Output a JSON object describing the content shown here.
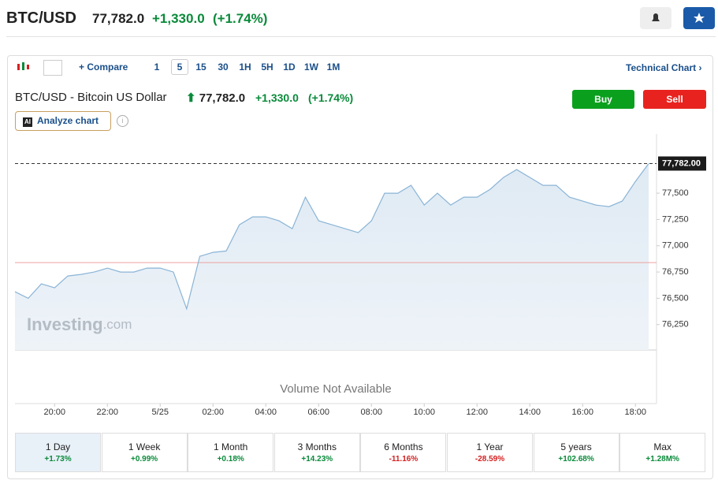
{
  "header": {
    "symbol": "BTC/USD",
    "price": "77,782.0",
    "change": "+1,330.0",
    "change_pct": "(+1.74%)"
  },
  "toolbar": {
    "compare": "Compare",
    "intervals": [
      "1",
      "5",
      "15",
      "30",
      "1H",
      "5H",
      "1D",
      "1W",
      "1M"
    ],
    "technical": "Technical Chart"
  },
  "instrument": {
    "name": "BTC/USD - Bitcoin US Dollar",
    "buy": "Buy",
    "sell": "Sell",
    "analyze": "Analyze chart"
  },
  "chart_data": {
    "type": "area",
    "color": "#8ab4d6",
    "categories": [
      "18:30",
      "19:00",
      "19:30",
      "20:00",
      "20:30",
      "21:00",
      "21:30",
      "22:00",
      "22:30",
      "23:00",
      "23:30",
      "5/25",
      "00:30",
      "01:00",
      "01:30",
      "02:00",
      "02:30",
      "03:00",
      "03:30",
      "04:00",
      "04:30",
      "05:00",
      "05:30",
      "06:00",
      "06:30",
      "07:00",
      "07:30",
      "08:00",
      "08:30",
      "09:00",
      "09:30",
      "10:00",
      "10:30",
      "11:00",
      "11:30",
      "12:00",
      "12:30",
      "13:00",
      "13:30",
      "14:00",
      "14:30",
      "15:00",
      "15:30",
      "16:00",
      "16:30",
      "17:00",
      "17:30",
      "18:00",
      "18:30"
    ],
    "values": [
      76562,
      76500,
      76637,
      76600,
      76712,
      76727,
      76750,
      76787,
      76750,
      76750,
      76787,
      76787,
      76750,
      76400,
      76900,
      76937,
      76950,
      77200,
      77275,
      77275,
      77237,
      77162,
      77462,
      77237,
      77200,
      77162,
      77125,
      77237,
      77500,
      77500,
      77575,
      77387,
      77500,
      77387,
      77462,
      77462,
      77537,
      77650,
      77725,
      77650,
      77575,
      77575,
      77462,
      77425,
      77387,
      77372,
      77425,
      77612,
      77782
    ],
    "xticks": [
      "20:00",
      "22:00",
      "5/25",
      "02:00",
      "04:00",
      "06:00",
      "08:00",
      "10:00",
      "12:00",
      "14:00",
      "16:00",
      "18:00"
    ],
    "ylim": [
      76008,
      77988
    ],
    "yticks": [
      {
        "value": 76250,
        "label": "76,250"
      },
      {
        "value": 76500,
        "label": "76,500"
      },
      {
        "value": 76750,
        "label": "76,750"
      },
      {
        "value": 77000,
        "label": "77,000"
      },
      {
        "value": 77250,
        "label": "77,250"
      },
      {
        "value": 77500,
        "label": "77,500"
      }
    ],
    "reference_line": 76840,
    "last_price": {
      "value": 77782,
      "label": "77,782.00"
    },
    "watermark": "Investing",
    "watermark_suffix": ".com",
    "volume_note": "Volume Not Available"
  },
  "periods": [
    {
      "label": "1 Day",
      "change": "+1.73%"
    },
    {
      "label": "1 Week",
      "change": "+0.99%"
    },
    {
      "label": "1 Month",
      "change": "+0.18%"
    },
    {
      "label": "3 Months",
      "change": "+14.23%"
    },
    {
      "label": "6 Months",
      "change": "-11.16%"
    },
    {
      "label": "1 Year",
      "change": "-28.59%"
    },
    {
      "label": "5 years",
      "change": "+102.68%"
    },
    {
      "label": "Max",
      "change": "+1.28M%"
    }
  ]
}
